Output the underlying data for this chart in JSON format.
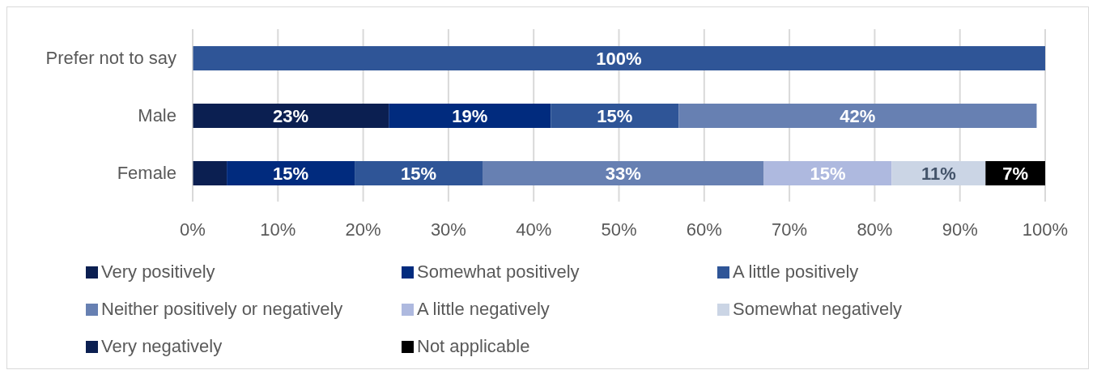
{
  "chart_data": {
    "type": "bar",
    "orientation": "horizontal",
    "stacked": true,
    "categories": [
      "Prefer not to say",
      "Male",
      "Female"
    ],
    "series": [
      {
        "name": "Very positively",
        "color": "#0b1f51",
        "values": [
          null,
          23,
          4
        ],
        "value_labels": [
          null,
          "23%",
          null
        ]
      },
      {
        "name": "Somewhat positively",
        "color": "#012b7e",
        "values": [
          null,
          19,
          15
        ],
        "value_labels": [
          null,
          "19%",
          "15%"
        ]
      },
      {
        "name": "A little positively",
        "color": "#2f5597",
        "values": [
          100,
          15,
          15
        ],
        "value_labels": [
          "100%",
          "15%",
          "15%"
        ]
      },
      {
        "name": "Neither positively or negatively",
        "color": "#6780b2",
        "values": [
          null,
          42,
          33
        ],
        "value_labels": [
          null,
          "42%",
          "33%"
        ]
      },
      {
        "name": "A little negatively",
        "color": "#aeb9df",
        "values": [
          null,
          null,
          15
        ],
        "value_labels": [
          null,
          null,
          "15%"
        ]
      },
      {
        "name": "Somewhat negatively",
        "color": "#cbd5e5",
        "values": [
          null,
          null,
          11
        ],
        "value_labels": [
          null,
          null,
          "11%"
        ]
      },
      {
        "name": "Very negatively",
        "color": "#0b1f51",
        "values": [
          null,
          null,
          null
        ]
      },
      {
        "name": "Not applicable",
        "color": "#000000",
        "values": [
          null,
          null,
          7
        ],
        "value_labels": [
          null,
          null,
          "7%"
        ]
      }
    ],
    "xlim": [
      0,
      100
    ],
    "xticks": [
      {
        "value": 0,
        "label": "0%"
      },
      {
        "value": 10,
        "label": "10%"
      },
      {
        "value": 20,
        "label": "20%"
      },
      {
        "value": 30,
        "label": "30%"
      },
      {
        "value": 40,
        "label": "40%"
      },
      {
        "value": 50,
        "label": "50%"
      },
      {
        "value": 60,
        "label": "60%"
      },
      {
        "value": 70,
        "label": "70%"
      },
      {
        "value": 80,
        "label": "80%"
      },
      {
        "value": 90,
        "label": "90%"
      },
      {
        "value": 100,
        "label": "100%"
      }
    ],
    "grid": "x",
    "legend": "bottom"
  }
}
